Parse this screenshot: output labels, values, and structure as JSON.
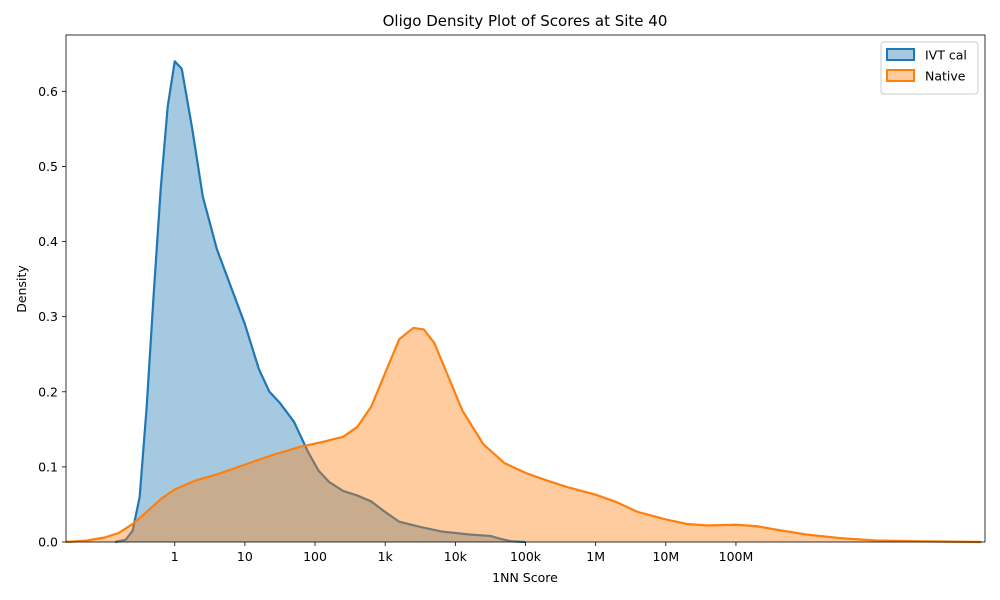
{
  "chart_data": {
    "type": "area",
    "title": "Oligo Density Plot of Scores at Site 40",
    "xlabel": "1NN Score",
    "ylabel": "Density",
    "x_scale": "log10",
    "xlim_log10": [
      -1.55,
      11.55
    ],
    "ylim": [
      0,
      0.675
    ],
    "x_ticks": [
      {
        "log10": 0,
        "label": "1"
      },
      {
        "log10": 1,
        "label": "10"
      },
      {
        "log10": 2,
        "label": "100"
      },
      {
        "log10": 3,
        "label": "1k"
      },
      {
        "log10": 4,
        "label": "10k"
      },
      {
        "log10": 5,
        "label": "100k"
      },
      {
        "log10": 6,
        "label": "1M"
      },
      {
        "log10": 7,
        "label": "10M"
      },
      {
        "log10": 8,
        "label": "100M"
      }
    ],
    "y_ticks": [
      {
        "value": 0.0,
        "label": "0.0"
      },
      {
        "value": 0.1,
        "label": "0.1"
      },
      {
        "value": 0.2,
        "label": "0.2"
      },
      {
        "value": 0.3,
        "label": "0.3"
      },
      {
        "value": 0.4,
        "label": "0.4"
      },
      {
        "value": 0.5,
        "label": "0.5"
      },
      {
        "value": 0.6,
        "label": "0.6"
      }
    ],
    "legend_position": "top-right",
    "series": [
      {
        "name": "IVT cal",
        "color": "#1f77b4",
        "fill_opacity": 0.4,
        "points": [
          [
            -0.85,
            0.0
          ],
          [
            -0.7,
            0.003
          ],
          [
            -0.6,
            0.015
          ],
          [
            -0.5,
            0.06
          ],
          [
            -0.4,
            0.18
          ],
          [
            -0.3,
            0.33
          ],
          [
            -0.2,
            0.47
          ],
          [
            -0.1,
            0.58
          ],
          [
            0.0,
            0.64
          ],
          [
            0.1,
            0.63
          ],
          [
            0.25,
            0.55
          ],
          [
            0.4,
            0.46
          ],
          [
            0.6,
            0.39
          ],
          [
            0.8,
            0.34
          ],
          [
            1.0,
            0.29
          ],
          [
            1.2,
            0.23
          ],
          [
            1.35,
            0.2
          ],
          [
            1.5,
            0.185
          ],
          [
            1.7,
            0.16
          ],
          [
            1.9,
            0.12
          ],
          [
            2.05,
            0.095
          ],
          [
            2.2,
            0.08
          ],
          [
            2.4,
            0.068
          ],
          [
            2.6,
            0.062
          ],
          [
            2.8,
            0.054
          ],
          [
            3.0,
            0.04
          ],
          [
            3.2,
            0.027
          ],
          [
            3.5,
            0.02
          ],
          [
            3.8,
            0.014
          ],
          [
            4.2,
            0.01
          ],
          [
            4.5,
            0.008
          ],
          [
            4.65,
            0.004
          ],
          [
            4.8,
            0.001
          ],
          [
            5.0,
            0.0
          ]
        ]
      },
      {
        "name": "Native",
        "color": "#ff7f0e",
        "fill_opacity": 0.4,
        "points": [
          [
            -1.55,
            0.0
          ],
          [
            -1.25,
            0.002
          ],
          [
            -1.0,
            0.006
          ],
          [
            -0.8,
            0.012
          ],
          [
            -0.6,
            0.024
          ],
          [
            -0.4,
            0.04
          ],
          [
            -0.2,
            0.057
          ],
          [
            0.0,
            0.07
          ],
          [
            0.3,
            0.082
          ],
          [
            0.6,
            0.09
          ],
          [
            1.0,
            0.103
          ],
          [
            1.4,
            0.116
          ],
          [
            1.8,
            0.127
          ],
          [
            2.1,
            0.133
          ],
          [
            2.4,
            0.14
          ],
          [
            2.6,
            0.153
          ],
          [
            2.8,
            0.18
          ],
          [
            3.0,
            0.225
          ],
          [
            3.2,
            0.27
          ],
          [
            3.4,
            0.285
          ],
          [
            3.55,
            0.283
          ],
          [
            3.7,
            0.265
          ],
          [
            3.9,
            0.22
          ],
          [
            4.1,
            0.175
          ],
          [
            4.4,
            0.13
          ],
          [
            4.7,
            0.105
          ],
          [
            5.0,
            0.092
          ],
          [
            5.3,
            0.082
          ],
          [
            5.6,
            0.073
          ],
          [
            6.0,
            0.063
          ],
          [
            6.3,
            0.053
          ],
          [
            6.6,
            0.04
          ],
          [
            7.0,
            0.03
          ],
          [
            7.3,
            0.024
          ],
          [
            7.6,
            0.022
          ],
          [
            8.0,
            0.023
          ],
          [
            8.3,
            0.021
          ],
          [
            8.6,
            0.016
          ],
          [
            9.0,
            0.01
          ],
          [
            9.5,
            0.005
          ],
          [
            10.0,
            0.002
          ],
          [
            10.6,
            0.001
          ],
          [
            11.5,
            0.0
          ]
        ]
      }
    ]
  }
}
